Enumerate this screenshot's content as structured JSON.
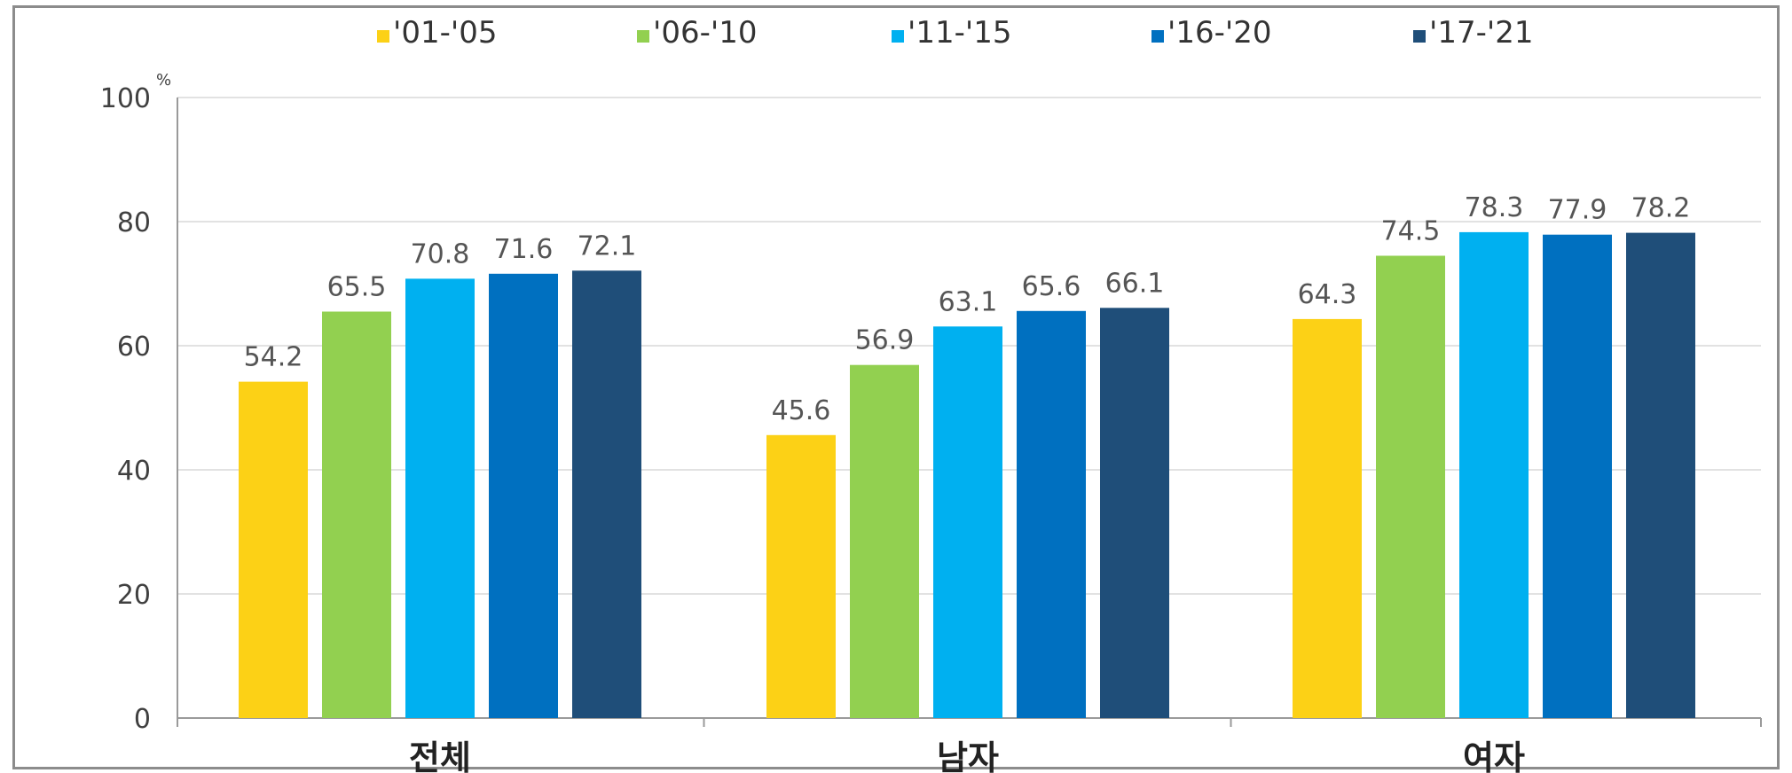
{
  "chart_data": {
    "type": "bar",
    "categories": [
      "전체",
      "남자",
      "여자"
    ],
    "series": [
      {
        "name": "'01-'05",
        "values": [
          54.2,
          45.6,
          64.3
        ],
        "color": "#fcd116"
      },
      {
        "name": "'06-'10",
        "values": [
          65.5,
          56.9,
          74.5
        ],
        "color": "#92d050"
      },
      {
        "name": "'11-'15",
        "values": [
          70.8,
          63.1,
          78.3
        ],
        "color": "#00b0f0"
      },
      {
        "name": "'16-'20",
        "values": [
          71.6,
          65.6,
          77.9
        ],
        "color": "#0070c0"
      },
      {
        "name": "'17-'21",
        "values": [
          72.1,
          66.1,
          78.2
        ],
        "color": "#1f4e79"
      }
    ],
    "y_unit": "%",
    "ylim": [
      0,
      100
    ],
    "yticks": [
      0,
      20,
      40,
      60,
      80,
      100
    ],
    "grid": true,
    "legend_position": "top-center"
  }
}
